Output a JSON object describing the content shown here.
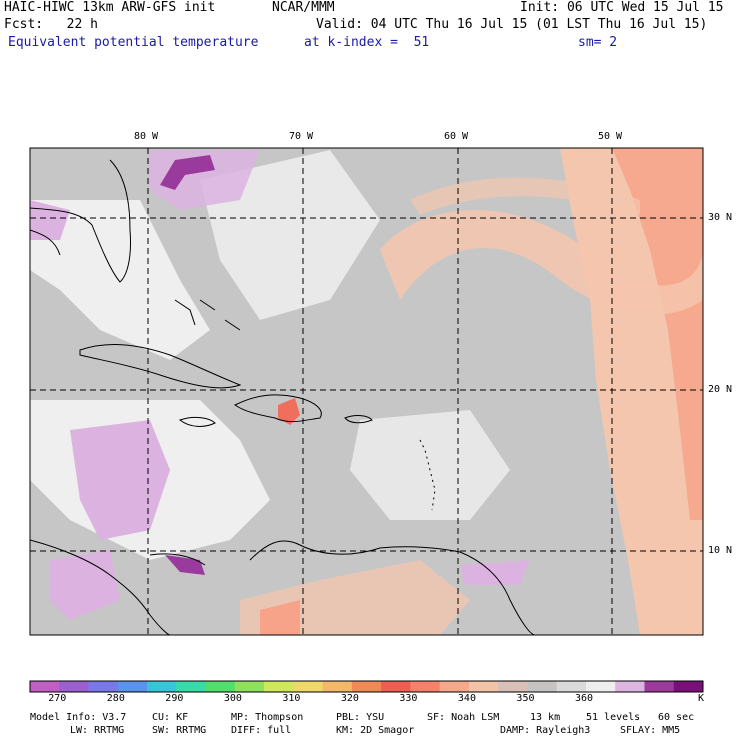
{
  "header": {
    "model_title": "HAIC-HIWC 13km ARW-GFS init",
    "org": "NCAR/MMM",
    "init": "Init: 06 UTC Wed 15 Jul 15",
    "fcst": "Fcst:   22 h",
    "valid": "Valid: 04 UTC Thu 16 Jul 15 (01 LST Thu 16 Jul 15)",
    "field": "Equivalent potential temperature",
    "level": "at k-index =  51",
    "smooth": "sm= 2"
  },
  "axes": {
    "longitude_labels": [
      "80 W",
      "70 W",
      "60 W",
      "50 W"
    ],
    "latitude_labels": [
      "30 N",
      "20 N",
      "10 N"
    ]
  },
  "legend": {
    "ticks": [
      "270",
      "280",
      "290",
      "300",
      "310",
      "320",
      "330",
      "340",
      "350",
      "360"
    ],
    "unit": "K",
    "colors": [
      "#c05ec4",
      "#9b5fd0",
      "#7a77e8",
      "#5a93ee",
      "#36c6d8",
      "#38dba8",
      "#4fdf6a",
      "#8fe05a",
      "#cfe85a",
      "#efd86a",
      "#f3b86a",
      "#f08a55",
      "#ee5f52",
      "#f6816a",
      "#f6a88a",
      "#f2c3a6",
      "#d8c0b8",
      "#c6c3c3",
      "#dadada",
      "#eeeeee",
      "#dcb6e0",
      "#9c3b9c",
      "#7a0f7a"
    ]
  },
  "footer": {
    "line1": [
      "Model Info: V3.7",
      "CU: KF",
      "MP: Thompson",
      "PBL: YSU",
      "SF: Noah LSM",
      "13 km",
      "51 levels",
      "60 sec"
    ],
    "line2": [
      "LW: RRTMG",
      "SW: RRTMG",
      "DIFF: full",
      "KM: 2D Smagor",
      "DAMP: Rayleigh3",
      "SFLAY: MM5"
    ]
  },
  "map_colors": {
    "gray": "#c6c6c6",
    "light": "#efefef",
    "lilac": "#dcb3e0",
    "purple": "#9a3a9c",
    "peach": "#f4c6ad",
    "salmon": "#f6a38a",
    "coral": "#ef6f5c"
  }
}
